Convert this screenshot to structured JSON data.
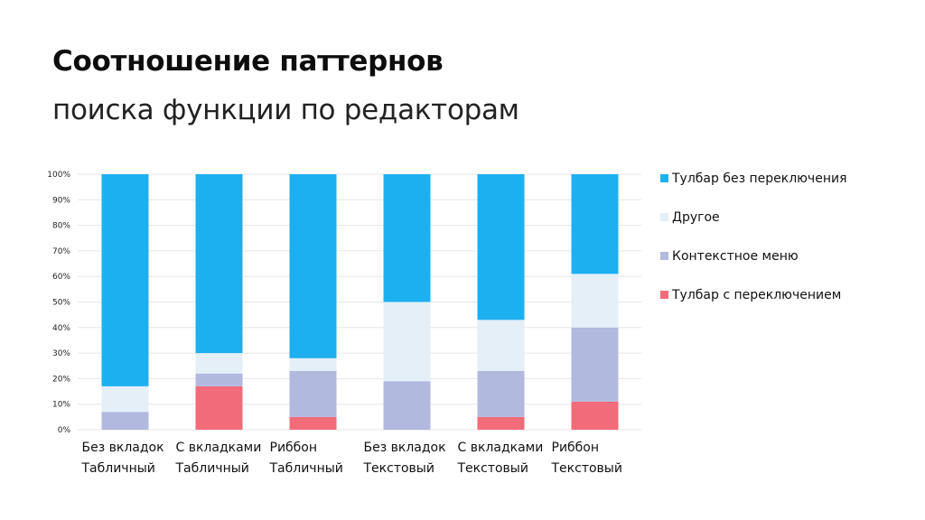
{
  "header": {
    "title": "Соотношение паттернов",
    "subtitle": "поиска функции по редакторам"
  },
  "chart_data": {
    "type": "bar",
    "stacked": true,
    "categories": [
      [
        "Без вкладок",
        "Табличный"
      ],
      [
        "С вкладками",
        "Табличный"
      ],
      [
        "Риббон",
        "Табличный"
      ],
      [
        "Без вкладок",
        "Текстовый"
      ],
      [
        "С вкладками",
        "Текстовый"
      ],
      [
        "Риббон",
        "Текстовый"
      ]
    ],
    "series": [
      {
        "name": "Тулбар с переключением",
        "color": "#f26b7a",
        "values": [
          0,
          17,
          5,
          0,
          5,
          11
        ]
      },
      {
        "name": "Контекстное меню",
        "color": "#b1b9de",
        "values": [
          7,
          5,
          18,
          19,
          18,
          29
        ]
      },
      {
        "name": "Другое",
        "color": "#e4eff8",
        "values": [
          10,
          8,
          5,
          31,
          20,
          21
        ]
      },
      {
        "name": "Тулбар без переключения",
        "color": "#1cb0f0",
        "values": [
          83,
          70,
          72,
          50,
          57,
          39
        ]
      }
    ],
    "legend_order": [
      "Тулбар без переключения",
      "Другое",
      "Контекстное меню",
      "Тулбар с переключением"
    ],
    "ylim": [
      0,
      100
    ],
    "yticks": [
      "0%",
      "10%",
      "20%",
      "30%",
      "40%",
      "50%",
      "60%",
      "70%",
      "80%",
      "90%",
      "100%"
    ],
    "grid": true,
    "legend_position": "right"
  }
}
